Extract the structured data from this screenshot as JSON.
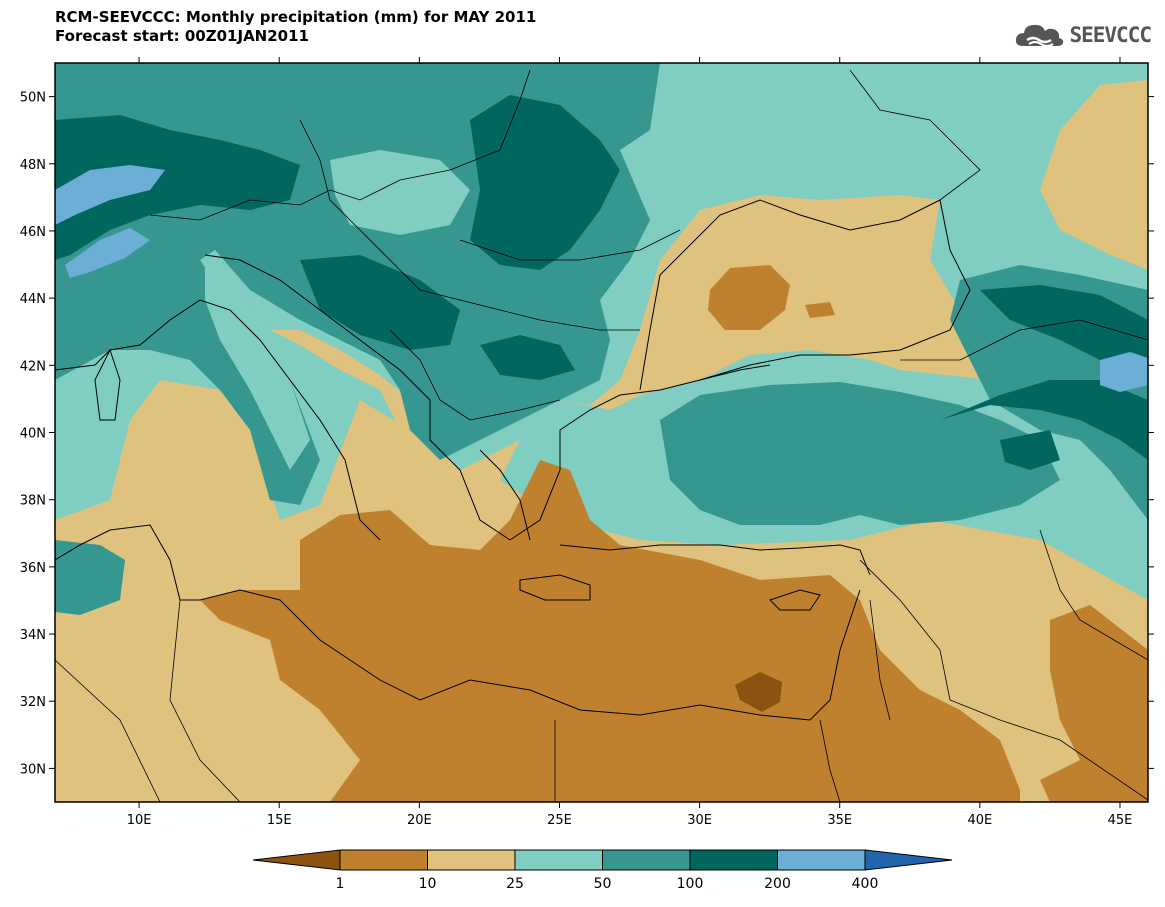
{
  "header": {
    "title": "RCM-SEEVCCC: Monthly precipitation (mm) for MAY 2011",
    "subtitle": "Forecast start: 00Z01JAN2011"
  },
  "logo": {
    "text": "SEEVCCC",
    "icon": "cloud-icon",
    "color": "#555555"
  },
  "map": {
    "lat_range": [
      29,
      51
    ],
    "lon_range": [
      7,
      46
    ],
    "lat_ticks": [
      "50N",
      "48N",
      "46N",
      "44N",
      "42N",
      "40N",
      "38N",
      "36N",
      "34N",
      "32N",
      "30N"
    ],
    "lon_ticks": [
      "10E",
      "15E",
      "20E",
      "25E",
      "30E",
      "35E",
      "40E",
      "45E"
    ],
    "lat_values": [
      50,
      48,
      46,
      44,
      42,
      40,
      38,
      36,
      34,
      32,
      30
    ],
    "lon_values": [
      10,
      15,
      20,
      25,
      30,
      35,
      40,
      45
    ]
  },
  "colorbar": {
    "labels": [
      "1",
      "10",
      "25",
      "50",
      "100",
      "200",
      "400"
    ],
    "colors": [
      "#8c5310",
      "#bf812d",
      "#dfc27d",
      "#80cdc1",
      "#35978f",
      "#01665e",
      "#6baed6",
      "#2166ac"
    ]
  }
}
